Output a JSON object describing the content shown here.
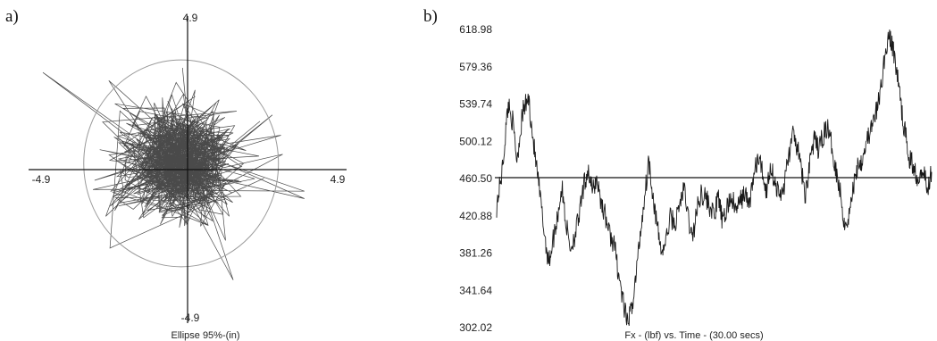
{
  "panels": {
    "a": {
      "label": "a)"
    },
    "b": {
      "label": "b)"
    }
  },
  "chart_data": [
    {
      "type": "scatter",
      "panel": "a",
      "description_of_marks": "stabilogram path",
      "xlabel": "Ellipse 95%-(in)",
      "ylabel": "",
      "xlim": [
        -4.9,
        4.9
      ],
      "ylim": [
        -4.9,
        4.9
      ],
      "tick_labels": {
        "x_min": "-4.9",
        "x_max": "4.9",
        "y_max": "4.9",
        "y_min": "-4.9"
      },
      "ellipse": {
        "center": [
          -0.2,
          0.2
        ],
        "rx": 3.0,
        "ry": 3.3
      },
      "grid": false
    },
    {
      "type": "line",
      "panel": "b",
      "xlabel": "Fx - (lbf) vs. Time - (30.00 secs)",
      "ylabel": "",
      "xlim": [
        0,
        30
      ],
      "ylim": [
        302.02,
        618.98
      ],
      "y_ticks": [
        "618.98",
        "579.36",
        "539.74",
        "500.12",
        "460.50",
        "420.88",
        "381.26",
        "341.64",
        "302.02"
      ],
      "reference_line": 460.5,
      "grid": false,
      "x": [
        0,
        0.4,
        0.8,
        1.1,
        1.4,
        1.8,
        2.2,
        2.6,
        3.0,
        3.3,
        3.6,
        3.9,
        4.2,
        4.5,
        4.8,
        5.1,
        5.4,
        5.7,
        6.0,
        6.3,
        6.6,
        6.9,
        7.2,
        7.5,
        7.8,
        8.1,
        8.4,
        8.7,
        9.0,
        9.3,
        9.6,
        9.9,
        10.2,
        10.5,
        10.8,
        11.1,
        11.4,
        11.7,
        12.0,
        12.3,
        12.6,
        12.9,
        13.2,
        13.5,
        13.8,
        14.1,
        14.4,
        14.7,
        15.0,
        15.3,
        15.6,
        15.9,
        16.2,
        16.5,
        16.8,
        17.1,
        17.4,
        17.7,
        18.0,
        18.3,
        18.6,
        18.9,
        19.2,
        19.5,
        19.8,
        20.1,
        20.4,
        20.7,
        21.0,
        21.3,
        21.6,
        21.9,
        22.2,
        22.5,
        22.8,
        23.1,
        23.4,
        23.7,
        24.0,
        24.3,
        24.6,
        24.9,
        25.2,
        25.5,
        25.8,
        26.1,
        26.4,
        26.7,
        27.0,
        27.3,
        27.6,
        27.9,
        28.2,
        28.5,
        28.8,
        29.1,
        29.4,
        29.7,
        30.0
      ],
      "values": [
        430,
        470,
        540,
        520,
        480,
        530,
        545,
        490,
        440,
        400,
        370,
        395,
        420,
        450,
        410,
        385,
        400,
        420,
        450,
        470,
        445,
        460,
        435,
        420,
        400,
        390,
        360,
        330,
        305,
        320,
        355,
        400,
        440,
        480,
        440,
        405,
        380,
        395,
        420,
        410,
        430,
        450,
        420,
        395,
        425,
        445,
        440,
        430,
        420,
        440,
        410,
        430,
        440,
        425,
        435,
        445,
        430,
        460,
        480,
        470,
        445,
        475,
        455,
        440,
        450,
        480,
        505,
        495,
        470,
        440,
        480,
        500,
        490,
        505,
        515,
        495,
        470,
        445,
        410,
        420,
        450,
        475,
        480,
        500,
        510,
        525,
        545,
        580,
        612,
        600,
        575,
        535,
        505,
        480,
        470,
        460,
        475,
        445,
        470
      ]
    }
  ]
}
